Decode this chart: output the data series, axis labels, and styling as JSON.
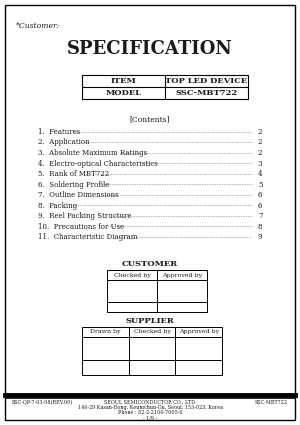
{
  "title": "SPECIFICATION",
  "customer_label": "*Customer:",
  "item_label": "ITEM",
  "item_value": "TOP LED DEVICE",
  "model_label": "MODEL",
  "model_value": "SSC-MBT722",
  "contents_header": "[Contents]",
  "contents": [
    [
      "1.  Features",
      "2"
    ],
    [
      "2.  Application",
      "2"
    ],
    [
      "3.  Absolute Maximum Ratings",
      "2"
    ],
    [
      "4.  Electro-optical Characteristics",
      "3"
    ],
    [
      "5.  Rank of MBT722",
      "4"
    ],
    [
      "6.  Soldering Profile",
      "5"
    ],
    [
      "7.  Outline Dimensions",
      "6"
    ],
    [
      "8.  Packing",
      "6"
    ],
    [
      "9.  Reel Packing Structure",
      "7"
    ],
    [
      "10.  Precautions for Use",
      "8"
    ],
    [
      "11.  Characteristic Diagram",
      "9"
    ]
  ],
  "customer_section": "CUSTOMER",
  "customer_cols": [
    "Checked by",
    "Approved by"
  ],
  "supplier_section": "SUPPLIER",
  "supplier_cols": [
    "Drawn by",
    "Checked by",
    "Approved by"
  ],
  "footer_left": "SSC-QP-7-03-08(REV.00)",
  "footer_center_line1": "SEOUL SEMICONDUCTOR CO., LTD.",
  "footer_center_line2": "146-29 Kasan-Dong, Keumchun-Gu, Seoul, 153-023, Korea",
  "footer_center_line3": "Phone : 82-2-2106-7005-6",
  "footer_center_line4": "- 1/9 -",
  "footer_right": "SSC-MBT722",
  "bg_color": "#ffffff",
  "border_color": "#000000",
  "text_color": "#1a1a1a"
}
